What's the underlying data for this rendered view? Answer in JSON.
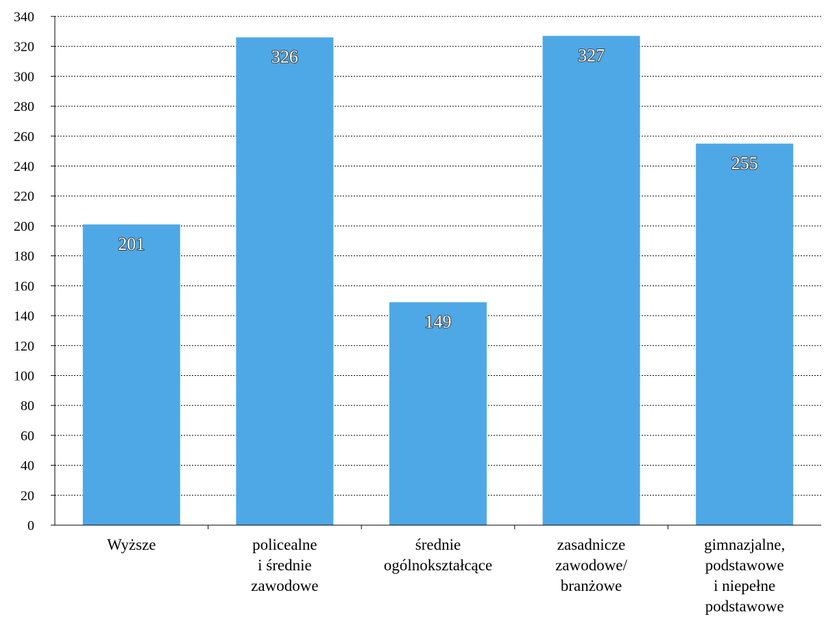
{
  "chart_data": {
    "type": "bar",
    "categories": [
      [
        "Wyższe"
      ],
      [
        "policealne",
        "i średnie",
        "zawodowe"
      ],
      [
        "średnie",
        "ogólnokształcące"
      ],
      [
        "zasadnicze",
        "zawodowe/",
        "branżowe"
      ],
      [
        "gimnazjalne,",
        "podstawowe",
        "i niepełne",
        "podstawowe"
      ]
    ],
    "values": [
      201,
      326,
      149,
      327,
      255
    ],
    "data_labels": [
      "201",
      "326",
      "149",
      "327",
      "255"
    ],
    "ylim": [
      0,
      340
    ],
    "yticks": [
      0,
      20,
      40,
      60,
      80,
      100,
      120,
      140,
      160,
      180,
      200,
      220,
      240,
      260,
      280,
      300,
      320,
      340
    ],
    "grid": "horizontal dotted",
    "colors": {
      "bar": "#4ea8e6",
      "grid": "#000000",
      "axis": "#000000"
    }
  }
}
